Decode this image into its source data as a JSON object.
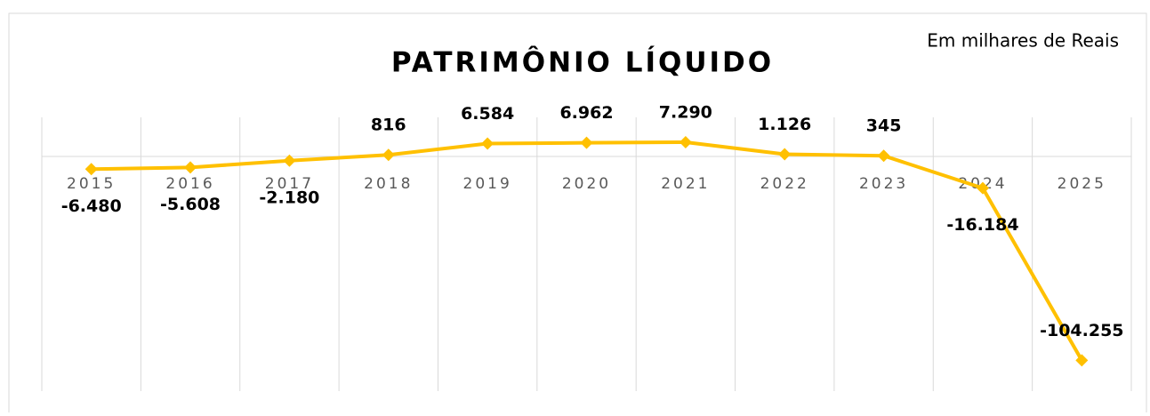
{
  "chart_data": {
    "type": "line",
    "title": "PATRIMÔNIO LÍQUIDO",
    "subtitle": "Em milhares de Reais",
    "categories": [
      "2015",
      "2016",
      "2017",
      "2018",
      "2019",
      "2020",
      "2021",
      "2022",
      "2023",
      "2024",
      "2025"
    ],
    "series": [
      {
        "name": "Patrimônio Líquido",
        "color": "#ffc000",
        "values": [
          -6480,
          -5608,
          -2180,
          816,
          6584,
          6962,
          7290,
          1126,
          345,
          -16184,
          -104255
        ],
        "value_labels": [
          "-6.480",
          "-5.608",
          "-2.180",
          "816",
          "6.584",
          "6.962",
          "7.290",
          "1.126",
          "345",
          "-16.184",
          "-104.255"
        ]
      }
    ],
    "ylim": [
      -120000,
      20000
    ],
    "grid": true
  }
}
